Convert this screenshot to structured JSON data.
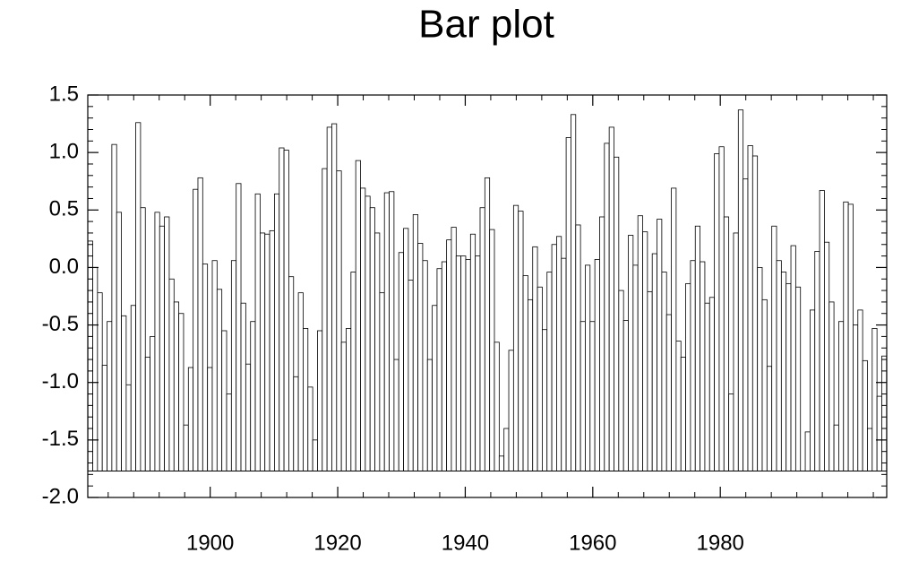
{
  "chart_data": {
    "type": "bar",
    "title": "Bar plot",
    "x": [
      1881.2,
      1881.95,
      1882.7,
      1883.45,
      1884.2,
      1884.95,
      1885.7,
      1886.45,
      1887.2,
      1887.95,
      1888.7,
      1889.45,
      1890.2,
      1890.95,
      1891.7,
      1892.45,
      1893.2,
      1893.95,
      1894.7,
      1895.45,
      1896.2,
      1896.95,
      1897.7,
      1898.45,
      1899.2,
      1899.95,
      1900.7,
      1901.45,
      1902.2,
      1902.95,
      1903.7,
      1904.45,
      1905.2,
      1905.95,
      1906.7,
      1907.45,
      1908.2,
      1908.95,
      1909.7,
      1910.45,
      1911.2,
      1911.95,
      1912.7,
      1913.45,
      1914.2,
      1914.95,
      1915.7,
      1916.45,
      1917.2,
      1917.95,
      1918.7,
      1919.45,
      1920.2,
      1920.95,
      1921.7,
      1922.45,
      1923.2,
      1923.95,
      1924.7,
      1925.45,
      1926.2,
      1926.95,
      1927.7,
      1928.45,
      1929.2,
      1929.95,
      1930.7,
      1931.45,
      1932.2,
      1932.95,
      1933.7,
      1934.45,
      1935.2,
      1935.95,
      1936.7,
      1937.45,
      1938.2,
      1938.95,
      1939.7,
      1940.45,
      1941.2,
      1941.95,
      1942.7,
      1943.45,
      1944.2,
      1944.95,
      1945.7,
      1946.45,
      1947.2,
      1947.95,
      1948.7,
      1949.45,
      1950.2,
      1950.95,
      1951.7,
      1952.45,
      1953.2,
      1953.95,
      1954.7,
      1955.45,
      1956.2,
      1956.95,
      1957.7,
      1958.45,
      1959.2,
      1959.95,
      1960.7,
      1961.45,
      1962.2,
      1962.95,
      1963.7,
      1964.45,
      1965.2,
      1965.95,
      1966.7,
      1967.45,
      1968.2,
      1968.95,
      1969.7,
      1970.45,
      1971.2,
      1971.95,
      1972.7,
      1973.45,
      1974.2,
      1974.95,
      1975.7,
      1976.45,
      1977.2,
      1977.95,
      1978.7,
      1979.45,
      1980.2,
      1980.95,
      1981.7,
      1982.45,
      1983.2,
      1983.95,
      1984.7,
      1985.45,
      1986.2,
      1986.95,
      1987.7,
      1988.45,
      1989.2,
      1989.95,
      1990.7,
      1991.45,
      1992.2,
      1992.95,
      1993.7,
      1994.45,
      1995.2,
      1995.95,
      1996.7,
      1997.45,
      1998.2,
      1998.95,
      1999.7,
      2000.45,
      2001.2,
      2001.95,
      2002.7,
      2003.45,
      2004.2,
      2004.95,
      2005.7
    ],
    "values": [
      0.23,
      0.0,
      -0.22,
      -0.85,
      -0.47,
      1.07,
      0.48,
      -0.42,
      -1.02,
      -0.33,
      1.26,
      0.52,
      -0.78,
      -0.6,
      0.48,
      0.36,
      0.44,
      -0.1,
      -0.3,
      -0.4,
      -1.37,
      -0.87,
      0.68,
      0.78,
      0.03,
      -0.87,
      0.06,
      -0.19,
      -0.55,
      -1.1,
      0.06,
      0.73,
      -0.31,
      -0.84,
      -0.47,
      0.64,
      0.3,
      0.29,
      0.32,
      0.64,
      1.04,
      1.02,
      -0.08,
      -0.95,
      -0.22,
      -0.53,
      -1.04,
      -1.5,
      -0.55,
      0.86,
      1.22,
      1.25,
      0.84,
      -0.65,
      -0.53,
      -0.04,
      0.93,
      0.69,
      0.62,
      0.52,
      0.3,
      -0.22,
      0.65,
      0.66,
      -0.8,
      0.13,
      0.34,
      -0.11,
      0.46,
      0.21,
      0.06,
      -0.8,
      -0.33,
      -0.01,
      0.05,
      0.24,
      0.35,
      0.1,
      0.1,
      0.07,
      0.29,
      0.1,
      0.52,
      0.78,
      0.33,
      -0.65,
      -1.64,
      -1.4,
      -0.72,
      0.54,
      0.49,
      -0.07,
      -0.28,
      0.18,
      -0.17,
      -0.54,
      -0.04,
      0.2,
      0.27,
      0.08,
      1.13,
      1.33,
      0.37,
      -0.47,
      0.02,
      -0.47,
      0.07,
      0.44,
      1.08,
      1.22,
      0.96,
      -0.2,
      -0.46,
      0.28,
      0.02,
      0.45,
      0.31,
      -0.21,
      0.12,
      0.42,
      -0.04,
      -0.41,
      0.69,
      -0.64,
      -0.78,
      -0.14,
      0.06,
      0.36,
      0.05,
      -0.31,
      -0.26,
      0.99,
      1.05,
      0.44,
      -1.1,
      0.3,
      1.37,
      0.77,
      1.06,
      0.97,
      0.0,
      -0.28,
      -0.86,
      0.36,
      0.06,
      -0.04,
      -0.14,
      0.19,
      -0.17,
      -1.77,
      -1.43,
      -0.37,
      0.14,
      0.67,
      0.22,
      -0.3,
      -1.37,
      -0.47,
      0.57,
      0.55,
      -0.5,
      -0.37,
      -0.81,
      -1.4,
      -0.53,
      -1.12,
      -0.77
    ],
    "bar_width": 0.75,
    "reference": -1.77,
    "color": "#ffffff",
    "edge_color": "#000000",
    "xlim": [
      1880.8,
      2006.1
    ],
    "xticks": [
      1900,
      1920,
      1940,
      1960,
      1980
    ],
    "xminorticks": [
      1884,
      1888,
      1892,
      1896,
      1904,
      1908,
      1912,
      1916,
      1924,
      1928,
      1932,
      1936,
      1944,
      1948,
      1952,
      1956,
      1964,
      1968,
      1972,
      1976,
      1984,
      1988,
      1992,
      1996,
      2000,
      2004
    ],
    "ylim": [
      -2.0,
      1.5
    ],
    "yticks": [
      {
        "value": -2.0,
        "label": "-2.0"
      },
      -1.5,
      {
        "value": -1.0,
        "label": "-1.0"
      },
      -0.5,
      {
        "value": 0.0,
        "label": "0.0"
      },
      0.5,
      {
        "value": 1.0,
        "label": "1.0"
      },
      1.5
    ],
    "yminorticks": [
      -1.9,
      -1.8,
      -1.7,
      -1.6,
      -1.4,
      -1.3,
      -1.2,
      -1.1,
      -0.9,
      -0.8,
      -0.7,
      -0.6,
      -0.4,
      -0.3,
      -0.2,
      -0.1,
      0.1,
      0.2,
      0.3,
      0.4,
      0.6,
      0.7,
      0.8,
      0.9,
      1.1,
      1.2,
      1.3,
      1.4
    ]
  }
}
